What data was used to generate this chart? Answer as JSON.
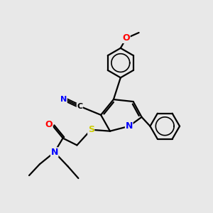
{
  "background_color": "#e8e8e8",
  "bond_color": "#000000",
  "atom_colors": {
    "N": "#0000ff",
    "O": "#ff0000",
    "S": "#cccc00",
    "C": "#000000"
  },
  "figsize": [
    3.0,
    3.0
  ],
  "dpi": 100
}
